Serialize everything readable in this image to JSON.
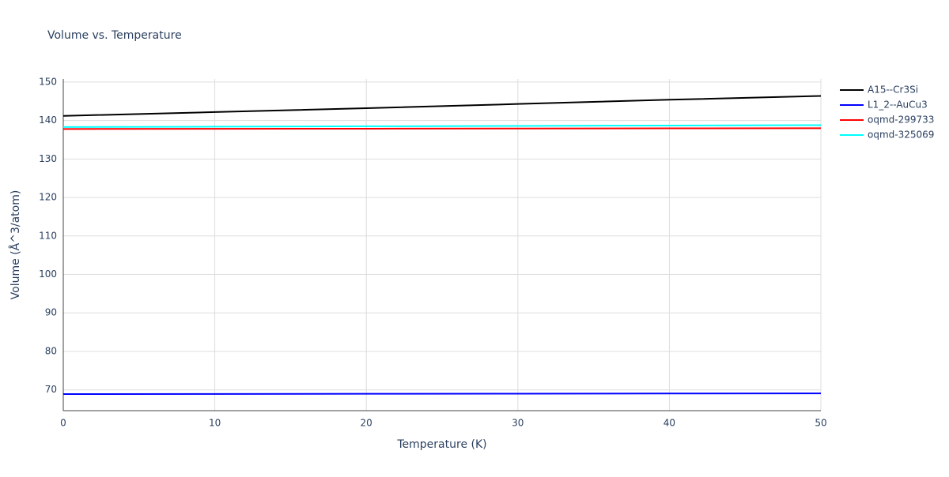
{
  "chart_data": {
    "type": "line",
    "title": "Volume vs. Temperature",
    "x_label": "Temperature (K)",
    "y_label": "Volume (Å^3/atom)",
    "x": [
      0,
      10,
      20,
      30,
      40,
      50
    ],
    "series": [
      {
        "name": "A15--Cr3Si",
        "color": "#000000",
        "values": [
          141.2,
          142.2,
          143.2,
          144.3,
          145.4,
          146.4
        ]
      },
      {
        "name": "L1_2--AuCu3",
        "color": "#0000ff",
        "values": [
          68.9,
          68.94,
          68.98,
          69.02,
          69.06,
          69.1
        ]
      },
      {
        "name": "oqmd-299733",
        "color": "#ff0000",
        "values": [
          137.8,
          137.84,
          137.88,
          137.92,
          137.96,
          138.0
        ]
      },
      {
        "name": "oqmd-325069",
        "color": "#00ffff",
        "values": [
          138.3,
          138.4,
          138.5,
          138.6,
          138.7,
          138.8
        ]
      }
    ],
    "xlim": [
      0,
      50
    ],
    "xticks": [
      0,
      10,
      20,
      30,
      40,
      50
    ],
    "ylim": [
      64.6,
      150.8
    ],
    "yticks": [
      70,
      80,
      90,
      100,
      110,
      120,
      130,
      140,
      150
    ],
    "grid": true
  }
}
